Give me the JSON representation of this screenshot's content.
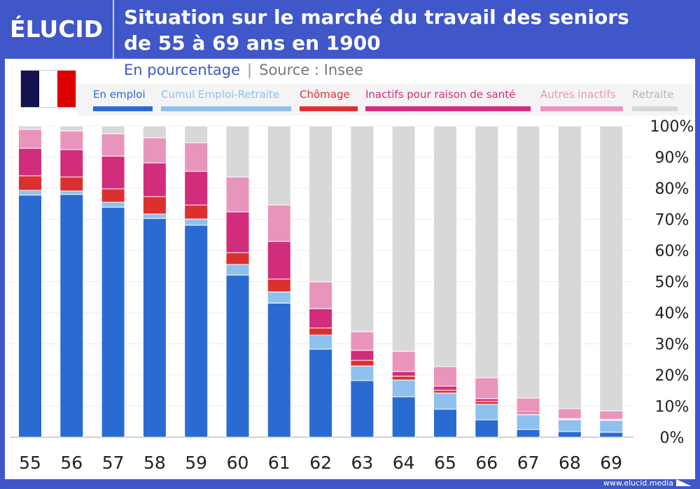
{
  "brand": "ÉLUCID",
  "title_line1": "Situation sur le marché du travail des seniors",
  "title_line2": "de 55 à 69 ans en 1900",
  "subtitle": "En pourcentage",
  "source": "Source : Insee",
  "footer": "www.elucid.media",
  "flag_colors": [
    "#14134f",
    "#ffffff",
    "#de0000"
  ],
  "chart_data": {
    "type": "bar",
    "stacked": true,
    "title": "Situation sur le marché du travail des seniors de 55 à 69 ans en 1900",
    "xlabel": "",
    "ylabel": "",
    "ylim": [
      0,
      100
    ],
    "yticks": [
      "0%",
      "10%",
      "20%",
      "30%",
      "40%",
      "50%",
      "60%",
      "70%",
      "80%",
      "90%",
      "100%"
    ],
    "grid": true,
    "legend_position": "top",
    "categories": [
      "55",
      "56",
      "57",
      "58",
      "59",
      "60",
      "61",
      "62",
      "63",
      "64",
      "65",
      "66",
      "67",
      "68",
      "69"
    ],
    "series": [
      {
        "name": "En emploi",
        "color": "#2a6bd1",
        "values": [
          77.8,
          78.0,
          73.9,
          70.3,
          68.1,
          52.1,
          43.1,
          28.3,
          18.2,
          13.0,
          9.0,
          5.6,
          2.5,
          1.8,
          1.6
        ]
      },
      {
        "name": "Cumul Emploi-Retraite",
        "color": "#8fc0ee",
        "values": [
          1.5,
          1.1,
          1.6,
          1.4,
          2.0,
          3.4,
          3.6,
          4.5,
          4.7,
          5.4,
          5.2,
          5.0,
          4.7,
          3.8,
          3.8
        ]
      },
      {
        "name": "Chômage",
        "color": "#dc3030",
        "values": [
          4.7,
          4.5,
          4.3,
          5.6,
          4.5,
          3.8,
          4.1,
          2.3,
          1.8,
          1.2,
          0.9,
          0.9,
          0.3,
          0.1,
          0.1
        ]
      },
      {
        "name": "Inactifs pour raison de santé",
        "color": "#d22c7c",
        "values": [
          8.8,
          8.8,
          10.5,
          10.8,
          10.8,
          13.1,
          12.1,
          6.2,
          3.2,
          1.5,
          1.3,
          0.9,
          0.6,
          0.3,
          0.3
        ]
      },
      {
        "name": "Autres inactifs",
        "color": "#e995bb",
        "values": [
          6.1,
          6.0,
          7.2,
          8.1,
          9.2,
          11.2,
          11.7,
          8.6,
          6.0,
          6.5,
          6.3,
          6.7,
          4.5,
          3.2,
          2.7
        ]
      },
      {
        "name": "Retraite",
        "color": "#d8d8d8",
        "values": [
          1.1,
          1.6,
          2.5,
          3.8,
          5.4,
          16.4,
          25.4,
          50.1,
          66.1,
          72.4,
          77.3,
          80.9,
          87.4,
          90.8,
          91.5
        ]
      }
    ]
  }
}
